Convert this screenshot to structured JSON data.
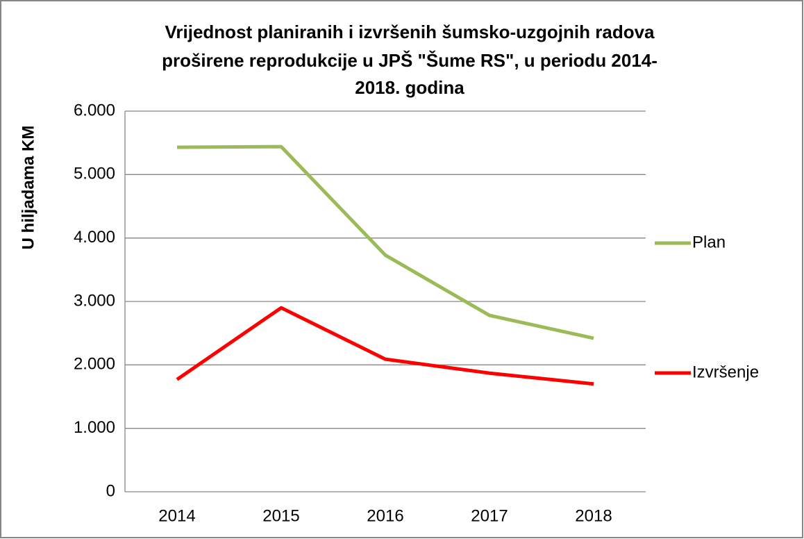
{
  "chart_data": {
    "type": "line",
    "title": [
      "Vrijednost planiranih i izvršenih šumsko-uzgojnih radova",
      "proširene reprodukcije u JPŠ \"Šume RS\", u periodu 2014-",
      "2018. godina"
    ],
    "y_label": "U hiljadama KM",
    "categories": [
      "2014",
      "2015",
      "2016",
      "2017",
      "2018"
    ],
    "series": [
      {
        "name": "Plan",
        "color": "#9bbb59",
        "values": [
          5430,
          5440,
          3730,
          2780,
          2420
        ]
      },
      {
        "name": "Izvršenje",
        "color": "#ff0000",
        "values": [
          1770,
          2900,
          2090,
          1870,
          1700
        ]
      }
    ],
    "ylim": [
      0,
      6000
    ],
    "yticks": [
      0,
      {
        "value": 1000,
        "label": "1.000"
      },
      {
        "value": 2000,
        "label": "2.000"
      },
      {
        "value": 3000,
        "label": "3.000"
      },
      {
        "value": 4000,
        "label": "4.000"
      },
      {
        "value": 5000,
        "label": "5.000"
      },
      {
        "value": 6000,
        "label": "6.000"
      }
    ],
    "grid": true,
    "legend": "right"
  }
}
